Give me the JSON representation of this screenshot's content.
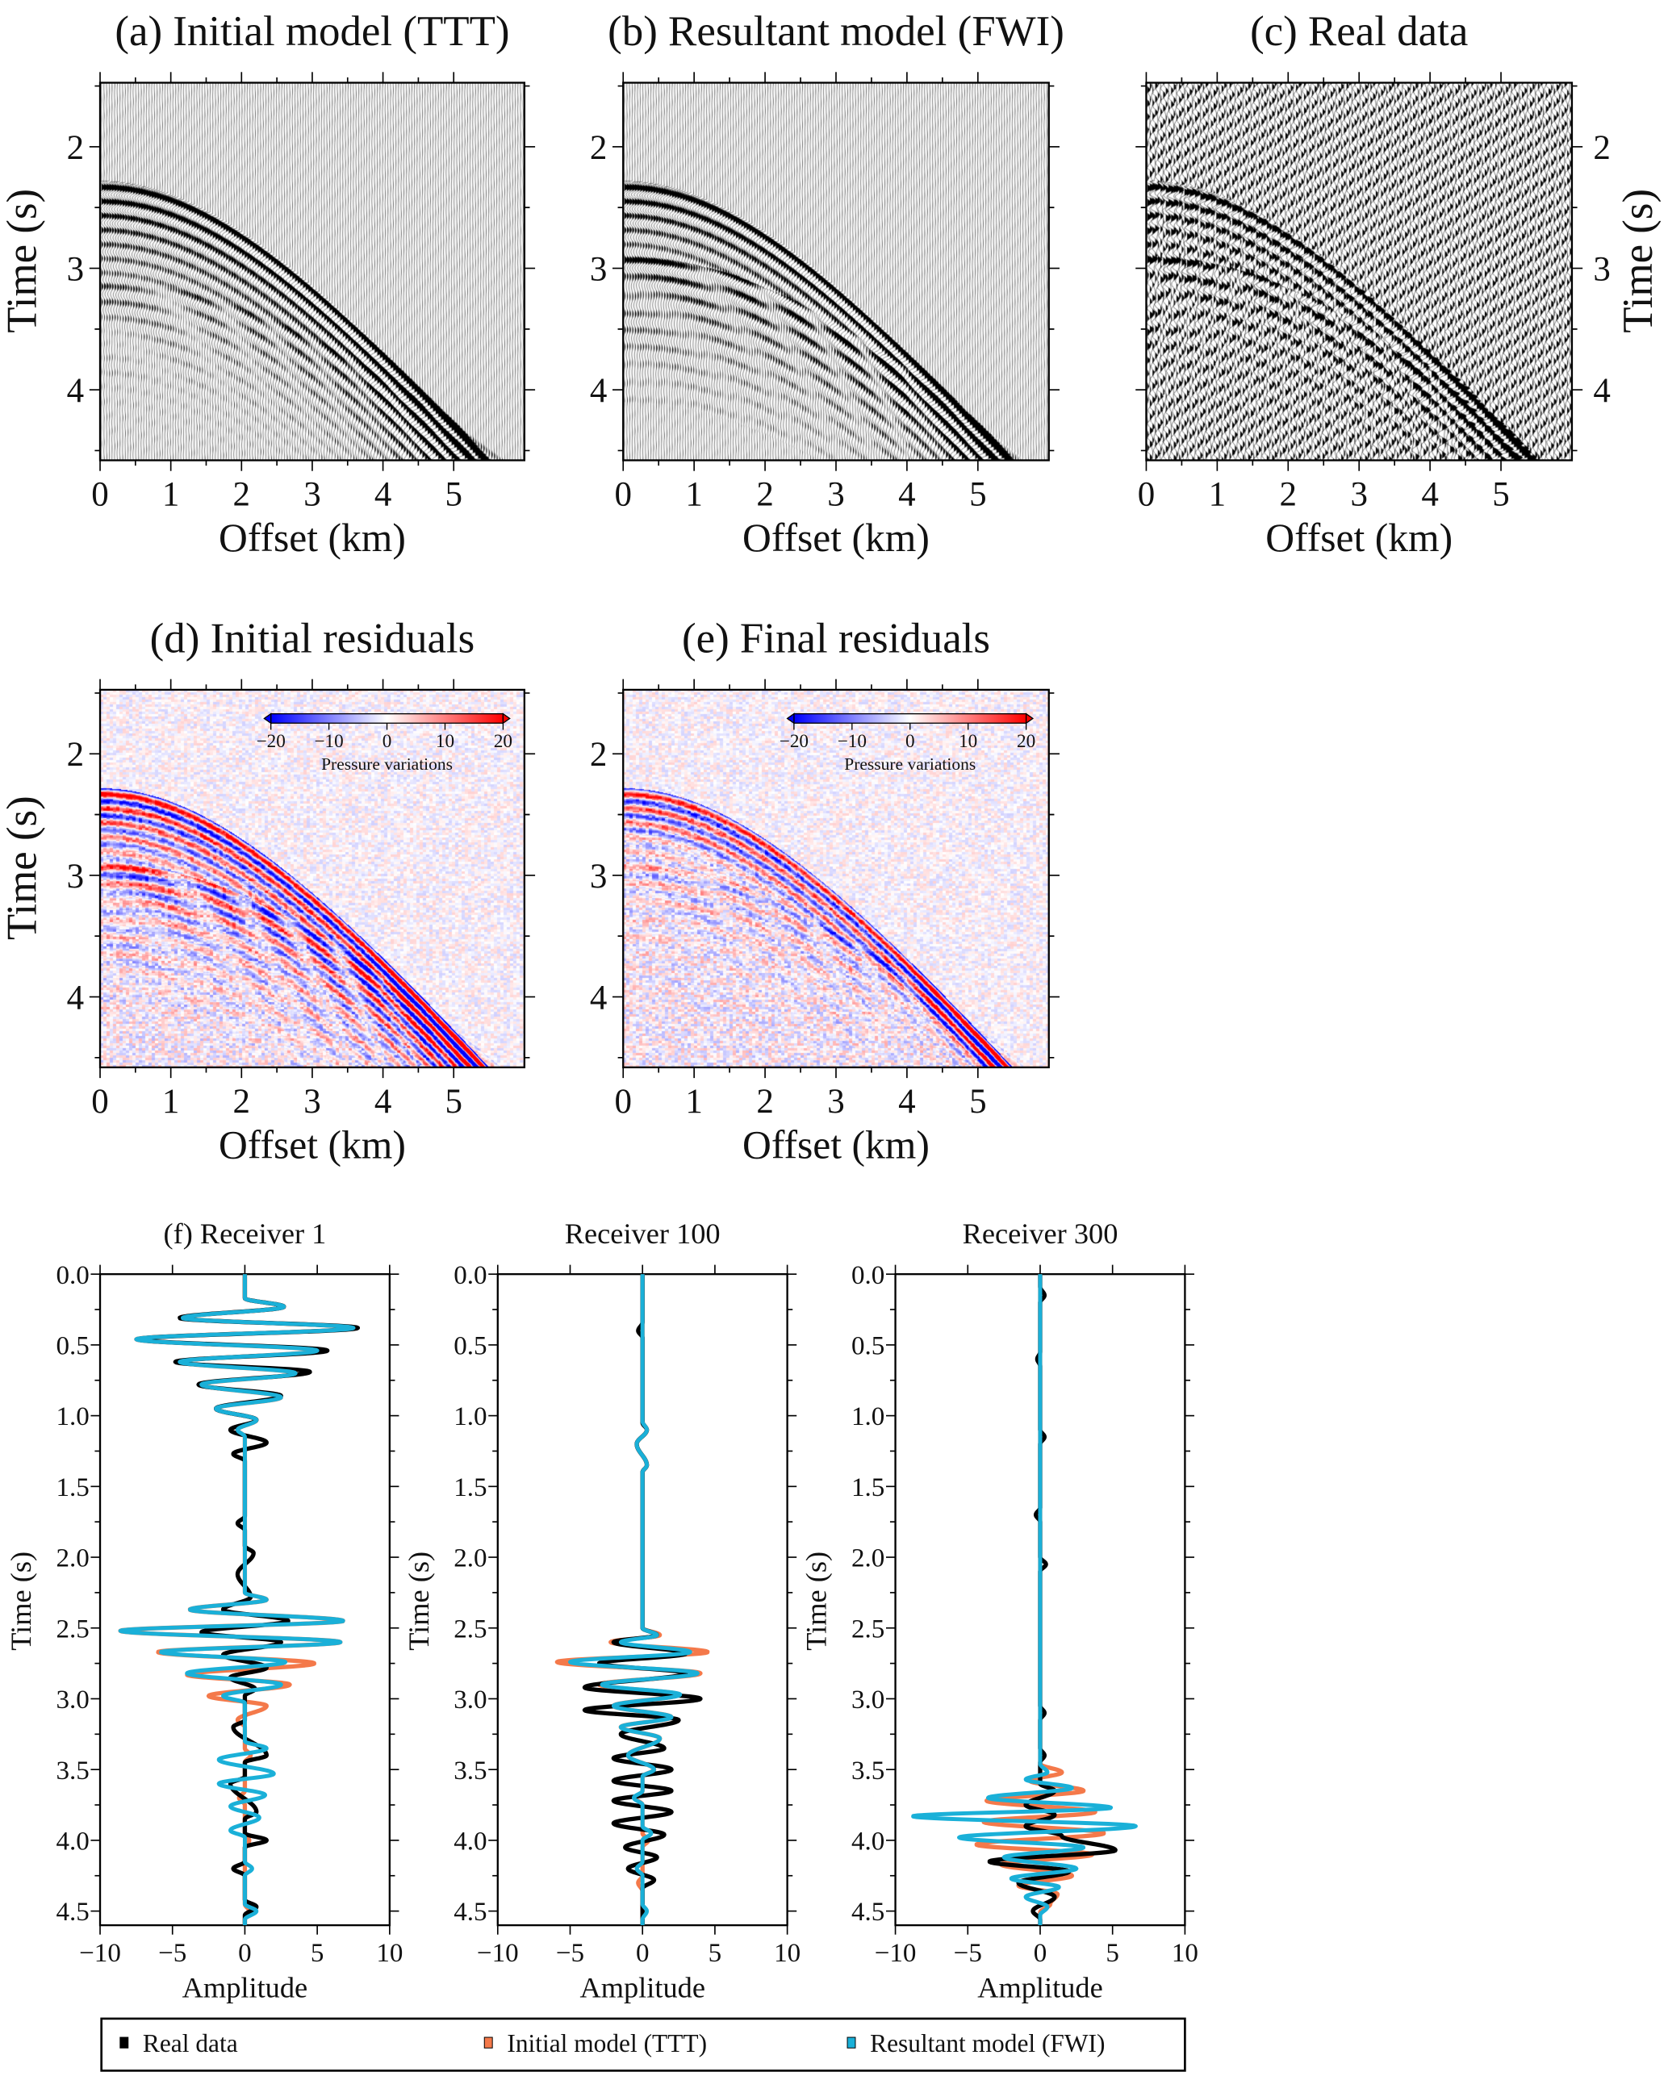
{
  "chart_data": [
    {
      "id": "a",
      "type": "heatmap",
      "render": "wiggle",
      "title": "(a) Initial model (TTT)",
      "xlabel": "Offset (km)",
      "ylabel": "Time (s)",
      "xlim": [
        0,
        6
      ],
      "ylim": [
        4.58,
        1.47
      ],
      "xticks": [
        "0",
        "1",
        "2",
        "3",
        "4",
        "5"
      ],
      "yticks": [
        "2",
        "3",
        "4"
      ],
      "yaxis_side": "left"
    },
    {
      "id": "b",
      "type": "heatmap",
      "render": "wiggle",
      "title": "(b) Resultant model (FWI)",
      "xlabel": "Offset (km)",
      "ylabel": "",
      "xlim": [
        0,
        6
      ],
      "ylim": [
        4.58,
        1.47
      ],
      "xticks": [
        "0",
        "1",
        "2",
        "3",
        "4",
        "5"
      ],
      "yticks": [
        "2",
        "3",
        "4"
      ],
      "yaxis_side": "left"
    },
    {
      "id": "c",
      "type": "heatmap",
      "render": "wiggle",
      "title": "(c) Real data",
      "xlabel": "Offset (km)",
      "ylabel": "Time (s)",
      "xlim": [
        0,
        6
      ],
      "ylim": [
        4.58,
        1.47
      ],
      "xticks": [
        "0",
        "1",
        "2",
        "3",
        "4",
        "5"
      ],
      "yticks": [
        "2",
        "3",
        "4"
      ],
      "yaxis_side": "right"
    },
    {
      "id": "d",
      "type": "heatmap",
      "render": "color",
      "title": "(d) Initial residuals",
      "xlabel": "Offset (km)",
      "ylabel": "Time (s)",
      "xlim": [
        0,
        6
      ],
      "ylim": [
        4.58,
        1.47
      ],
      "xticks": [
        "0",
        "1",
        "2",
        "3",
        "4",
        "5"
      ],
      "yticks": [
        "2",
        "3",
        "4"
      ],
      "yaxis_side": "left",
      "colorbar": {
        "label": "Pressure variations",
        "range": [
          -20,
          20
        ],
        "ticks": [
          "−20",
          "−10",
          "0",
          "10",
          "20"
        ],
        "colors": [
          "#0000ff",
          "#ffffff",
          "#ff0000"
        ]
      }
    },
    {
      "id": "e",
      "type": "heatmap",
      "render": "color",
      "title": "(e) Final residuals",
      "xlabel": "Offset (km)",
      "ylabel": "",
      "xlim": [
        0,
        6
      ],
      "ylim": [
        4.58,
        1.47
      ],
      "xticks": [
        "0",
        "1",
        "2",
        "3",
        "4",
        "5"
      ],
      "yticks": [
        "2",
        "3",
        "4"
      ],
      "yaxis_side": "left",
      "colorbar": {
        "label": "Pressure variations",
        "range": [
          -20,
          20
        ],
        "ticks": [
          "−20",
          "−10",
          "0",
          "10",
          "20"
        ],
        "colors": [
          "#0000ff",
          "#ffffff",
          "#ff0000"
        ]
      }
    },
    {
      "id": "f1",
      "type": "line",
      "title": "(f) Receiver 1",
      "xlabel": "Amplitude",
      "ylabel": "Time (s)",
      "xlim": [
        -10,
        10
      ],
      "ylim": [
        4.6,
        0
      ],
      "xticks": [
        "−10",
        "−5",
        "0",
        "5",
        "10"
      ],
      "yticks": [
        "0.0",
        "0.5",
        "1.0",
        "1.5",
        "2.0",
        "2.5",
        "3.0",
        "3.5",
        "4.0",
        "4.5"
      ],
      "series": [
        {
          "name": "Initial model (TTT)",
          "color": "#f4794a",
          "peaks": [
            [
              0.23,
              2.7
            ],
            [
              0.31,
              -4.3
            ],
            [
              0.38,
              7.5
            ],
            [
              0.46,
              -7.5
            ],
            [
              0.54,
              5
            ],
            [
              0.62,
              -4.5
            ],
            [
              0.7,
              3.5
            ],
            [
              0.78,
              -3
            ],
            [
              0.87,
              2.5
            ],
            [
              0.95,
              -2
            ],
            [
              1.03,
              0.8
            ],
            [
              1.1,
              -0.5
            ],
            [
              2.3,
              1.5
            ],
            [
              2.37,
              -3.8
            ],
            [
              2.45,
              6.8
            ],
            [
              2.52,
              -8.6
            ],
            [
              2.6,
              6.6
            ],
            [
              2.67,
              -6
            ],
            [
              2.75,
              4.8
            ],
            [
              2.83,
              -4
            ],
            [
              2.9,
              3.1
            ],
            [
              2.98,
              -2.5
            ],
            [
              3.05,
              1.5
            ],
            [
              3.15,
              -0.5
            ],
            [
              3.4,
              0.4
            ],
            [
              3.7,
              -0.4
            ],
            [
              4.0,
              0.3
            ],
            [
              4.5,
              0.3
            ]
          ]
        },
        {
          "name": "Real data",
          "color": "#000000",
          "peaks": [
            [
              0.23,
              2.7
            ],
            [
              0.31,
              -4.5
            ],
            [
              0.38,
              7.8
            ],
            [
              0.46,
              -7.4
            ],
            [
              0.54,
              5.7
            ],
            [
              0.62,
              -4.8
            ],
            [
              0.69,
              4.5
            ],
            [
              0.78,
              -3.2
            ],
            [
              0.86,
              2.5
            ],
            [
              0.95,
              -2
            ],
            [
              1.03,
              0.8
            ],
            [
              1.1,
              -1
            ],
            [
              1.19,
              1.5
            ],
            [
              1.27,
              -0.8
            ],
            [
              1.76,
              -0.5
            ],
            [
              1.97,
              0.6
            ],
            [
              2.12,
              -0.5
            ],
            [
              2.28,
              0.4
            ],
            [
              2.37,
              -1.5
            ],
            [
              2.45,
              3
            ],
            [
              2.53,
              -3
            ],
            [
              2.6,
              2.5
            ],
            [
              2.69,
              -1.5
            ],
            [
              2.78,
              1.5
            ],
            [
              2.85,
              -1
            ],
            [
              2.93,
              0.7
            ],
            [
              3.2,
              -0.8
            ],
            [
              3.4,
              1.5
            ],
            [
              3.6,
              -1
            ],
            [
              3.8,
              0.8
            ],
            [
              4.0,
              1.5
            ],
            [
              4.2,
              -0.8
            ],
            [
              4.47,
              0.8
            ]
          ]
        },
        {
          "name": "Resultant model (FWI)",
          "color": "#1ab0d8",
          "peaks": [
            [
              0.23,
              2.7
            ],
            [
              0.31,
              -4.3
            ],
            [
              0.38,
              7.5
            ],
            [
              0.46,
              -7.5
            ],
            [
              0.54,
              5
            ],
            [
              0.62,
              -4.5
            ],
            [
              0.7,
              3.5
            ],
            [
              0.78,
              -3
            ],
            [
              0.87,
              2.5
            ],
            [
              0.95,
              -2
            ],
            [
              1.03,
              0.8
            ],
            [
              1.1,
              -0.5
            ],
            [
              2.3,
              1.5
            ],
            [
              2.37,
              -3.8
            ],
            [
              2.45,
              6.8
            ],
            [
              2.52,
              -8.6
            ],
            [
              2.6,
              6.6
            ],
            [
              2.67,
              -5.8
            ],
            [
              2.74,
              2.8
            ],
            [
              2.82,
              -4
            ],
            [
              2.9,
              2.5
            ],
            [
              2.98,
              -1.5
            ],
            [
              3.35,
              1.5
            ],
            [
              3.43,
              -1.8
            ],
            [
              3.53,
              2
            ],
            [
              3.6,
              -1.8
            ],
            [
              3.68,
              1.4
            ],
            [
              3.76,
              -1
            ],
            [
              3.84,
              1
            ],
            [
              3.93,
              -1
            ],
            [
              4.2,
              0.5
            ],
            [
              4.5,
              0.8
            ]
          ]
        }
      ]
    },
    {
      "id": "f2",
      "type": "line",
      "title": "Receiver 100",
      "xlabel": "Amplitude",
      "ylabel": "Time (s)",
      "xlim": [
        -10,
        10
      ],
      "ylim": [
        4.6,
        0
      ],
      "xticks": [
        "−10",
        "−5",
        "0",
        "5",
        "10"
      ],
      "yticks": [
        "0.0",
        "0.5",
        "1.0",
        "1.5",
        "2.0",
        "2.5",
        "3.0",
        "3.5",
        "4.0",
        "4.5"
      ],
      "series": [
        {
          "name": "Initial model (TTT)",
          "color": "#f4794a",
          "peaks": [
            [
              1.1,
              0.3
            ],
            [
              1.2,
              -0.4
            ],
            [
              1.35,
              0.3
            ],
            [
              2.55,
              1.2
            ],
            [
              2.6,
              -2.2
            ],
            [
              2.67,
              4.5
            ],
            [
              2.74,
              -5.9
            ],
            [
              2.82,
              4
            ],
            [
              2.9,
              -3
            ],
            [
              2.97,
              2.5
            ],
            [
              3.05,
              -2
            ],
            [
              3.13,
              2
            ],
            [
              3.2,
              -1.5
            ],
            [
              3.28,
              1.2
            ],
            [
              3.4,
              -1
            ],
            [
              3.5,
              0.8
            ],
            [
              3.7,
              -0.5
            ],
            [
              4.0,
              0.4
            ],
            [
              4.3,
              -0.3
            ]
          ]
        },
        {
          "name": "Real data",
          "color": "#000000",
          "peaks": [
            [
              0.4,
              -0.3
            ],
            [
              1.1,
              0.3
            ],
            [
              1.2,
              -0.4
            ],
            [
              1.35,
              0.3
            ],
            [
              2.55,
              1
            ],
            [
              2.6,
              -2
            ],
            [
              2.68,
              3
            ],
            [
              2.75,
              -3
            ],
            [
              2.82,
              3
            ],
            [
              2.92,
              -4
            ],
            [
              3.0,
              4
            ],
            [
              3.08,
              -4
            ],
            [
              3.15,
              2.5
            ],
            [
              3.25,
              -1.5
            ],
            [
              3.35,
              1.5
            ],
            [
              3.42,
              -2
            ],
            [
              3.5,
              2
            ],
            [
              3.58,
              -2
            ],
            [
              3.65,
              2
            ],
            [
              3.72,
              -2
            ],
            [
              3.8,
              2
            ],
            [
              3.88,
              -2
            ],
            [
              3.96,
              1.5
            ],
            [
              4.05,
              -1.2
            ],
            [
              4.12,
              1
            ],
            [
              4.2,
              -1
            ],
            [
              4.28,
              0.8
            ]
          ]
        },
        {
          "name": "Resultant model (FWI)",
          "color": "#1ab0d8",
          "peaks": [
            [
              1.1,
              0.3
            ],
            [
              1.2,
              -0.4
            ],
            [
              1.35,
              0.3
            ],
            [
              2.55,
              1
            ],
            [
              2.6,
              -1.5
            ],
            [
              2.67,
              3.3
            ],
            [
              2.74,
              -5
            ],
            [
              2.82,
              3.8
            ],
            [
              2.9,
              -2.8
            ],
            [
              2.97,
              2.6
            ],
            [
              3.05,
              -2
            ],
            [
              3.13,
              2
            ],
            [
              3.2,
              -1.5
            ],
            [
              3.28,
              1.2
            ],
            [
              3.4,
              -1
            ],
            [
              3.5,
              0.8
            ],
            [
              3.7,
              -0.6
            ],
            [
              3.95,
              0.6
            ],
            [
              4.2,
              -0.4
            ],
            [
              4.5,
              0.3
            ]
          ]
        }
      ]
    },
    {
      "id": "f3",
      "type": "line",
      "title": "Receiver 300",
      "xlabel": "Amplitude",
      "ylabel": "Time (s)",
      "xlim": [
        -10,
        10
      ],
      "ylim": [
        4.6,
        0
      ],
      "xticks": [
        "−10",
        "−5",
        "0",
        "5",
        "10"
      ],
      "yticks": [
        "0.0",
        "0.5",
        "1.0",
        "1.5",
        "2.0",
        "2.5",
        "3.0",
        "3.5",
        "4.0",
        "4.5"
      ],
      "series": [
        {
          "name": "Initial model (TTT)",
          "color": "#f4794a",
          "peaks": [
            [
              3.52,
              1.5
            ],
            [
              3.58,
              -0.7
            ],
            [
              3.65,
              3
            ],
            [
              3.72,
              -3.7
            ],
            [
              3.8,
              3.8
            ],
            [
              3.87,
              -3.9
            ],
            [
              3.95,
              4.4
            ],
            [
              4.03,
              -4.4
            ],
            [
              4.1,
              3.6
            ],
            [
              4.17,
              -2.7
            ],
            [
              4.25,
              2.2
            ],
            [
              4.32,
              -1.5
            ],
            [
              4.38,
              1.2
            ],
            [
              4.45,
              0.7
            ]
          ]
        },
        {
          "name": "Real data",
          "color": "#000000",
          "peaks": [
            [
              0.15,
              0.3
            ],
            [
              0.6,
              -0.2
            ],
            [
              1.15,
              0.3
            ],
            [
              1.7,
              -0.3
            ],
            [
              2.05,
              0.4
            ],
            [
              3.1,
              0.3
            ],
            [
              3.4,
              0.3
            ],
            [
              3.65,
              1
            ],
            [
              3.75,
              -1
            ],
            [
              3.82,
              1
            ],
            [
              3.9,
              -1
            ],
            [
              3.97,
              1.5
            ],
            [
              4.07,
              5.2
            ],
            [
              4.15,
              -3.5
            ],
            [
              4.22,
              2
            ],
            [
              4.3,
              -1.5
            ],
            [
              4.4,
              1
            ],
            [
              4.5,
              -0.5
            ]
          ]
        },
        {
          "name": "Resultant model (FWI)",
          "color": "#1ab0d8",
          "peaks": [
            [
              3.52,
              0.5
            ],
            [
              3.57,
              -1
            ],
            [
              3.63,
              2.2
            ],
            [
              3.7,
              -3.6
            ],
            [
              3.77,
              4.9
            ],
            [
              3.83,
              -8.8
            ],
            [
              3.9,
              6.6
            ],
            [
              3.98,
              -5.6
            ],
            [
              4.05,
              3
            ],
            [
              4.12,
              -2.5
            ],
            [
              4.2,
              2.5
            ],
            [
              4.27,
              -2
            ],
            [
              4.33,
              1.3
            ],
            [
              4.4,
              -1
            ],
            [
              4.47,
              0.5
            ]
          ]
        }
      ]
    }
  ],
  "legend": {
    "items": [
      {
        "label": "Real data",
        "color": "#000000"
      },
      {
        "label": "Initial model (TTT)",
        "color": "#f4794a"
      },
      {
        "label": "Resultant model (FWI)",
        "color": "#1ab0d8"
      }
    ]
  }
}
